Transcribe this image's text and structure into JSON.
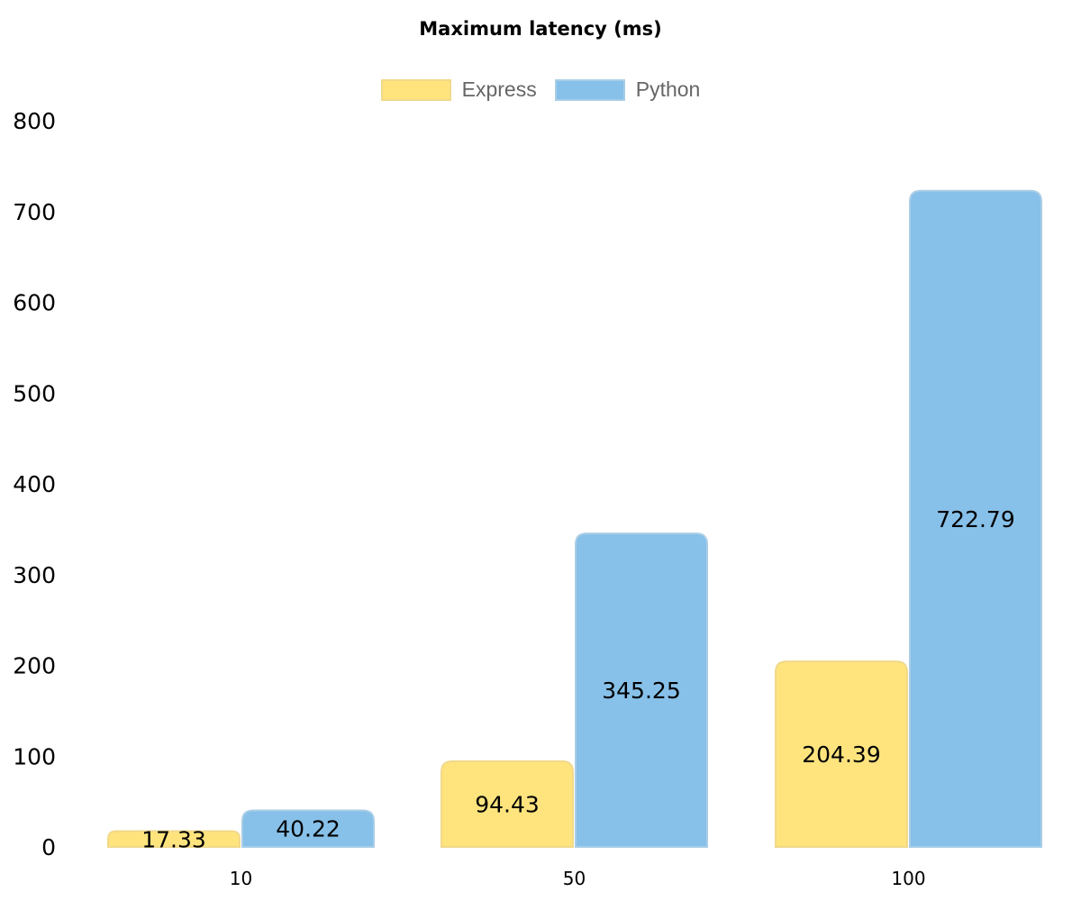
{
  "chart_data": {
    "type": "bar",
    "title": "Maximum latency (ms)",
    "categories": [
      "10",
      "50",
      "100"
    ],
    "series": [
      {
        "name": "Express",
        "values": [
          17.33,
          94.43,
          204.39
        ],
        "fill": "#ffe47e",
        "stroke": "#f0d98a"
      },
      {
        "name": "Python",
        "values": [
          40.22,
          345.25,
          722.79
        ],
        "fill": "#87c0e8",
        "stroke": "#a9cde6"
      }
    ],
    "ylim": [
      0,
      800
    ],
    "yticks": [
      "0",
      "100",
      "200",
      "300",
      "400",
      "500",
      "600",
      "700",
      "800"
    ],
    "grid": false,
    "legend_position": "top",
    "data_labels": true
  }
}
